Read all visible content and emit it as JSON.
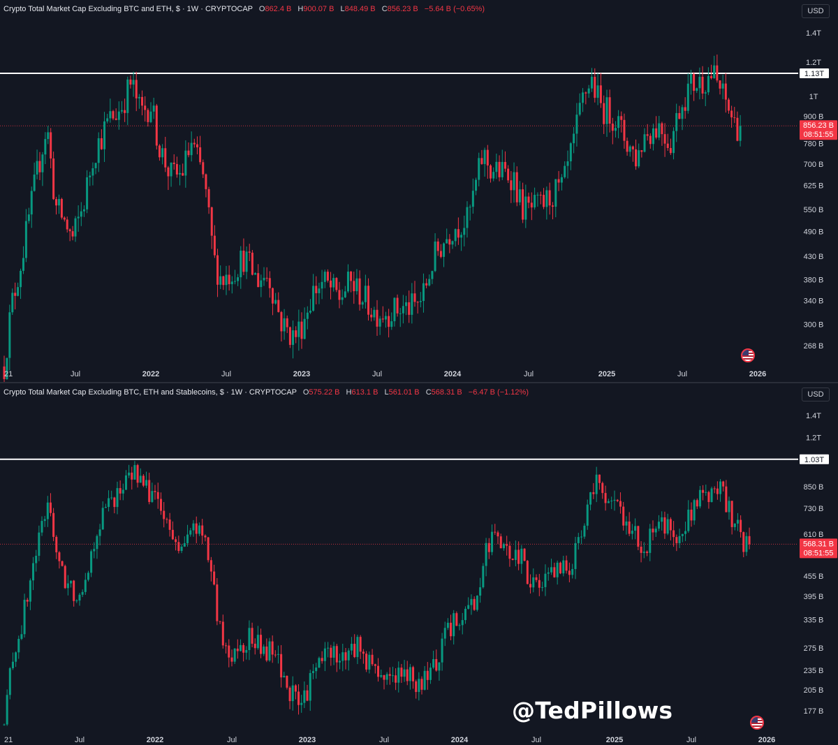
{
  "watermark": "@TedPillows",
  "colors": {
    "up": "#089981",
    "down": "#f23645",
    "bg": "#131722",
    "text": "#d1d4dc",
    "hline": "#ffffff"
  },
  "chart_data": [
    {
      "type": "candlestick",
      "title": "Crypto Total Market Cap Excluding BTC and ETH, $ · 1W · CRYPTOCAP",
      "ohlc": {
        "o_label": "O",
        "o": "862.4 B",
        "h_label": "H",
        "h": "900.07 B",
        "l_label": "L",
        "l": "848.49 B",
        "c_label": "C",
        "c": "856.23 B",
        "change": "−5.64 B (−0.65%)"
      },
      "currency": "USD",
      "scale": "log",
      "y_ticks": [
        "1.4T",
        "1.2T",
        "1T",
        "900 B",
        "780 B",
        "700 B",
        "625 B",
        "550 B",
        "490 B",
        "430 B",
        "380 B",
        "340 B",
        "300 B",
        "268 B"
      ],
      "x_ticks": [
        "21",
        "Jul",
        "2022",
        "Jul",
        "2023",
        "Jul",
        "2024",
        "Jul",
        "2025",
        "Jul",
        "2026"
      ],
      "horizontal_line": {
        "label": "1.13T",
        "value": 1130
      },
      "last_price": {
        "label": "856.23 B",
        "countdown": "08:51:55",
        "value": 856.23
      },
      "anchors": [
        [
          2021.0,
          240
        ],
        [
          2021.05,
          330
        ],
        [
          2021.12,
          420
        ],
        [
          2021.22,
          640
        ],
        [
          2021.3,
          860
        ],
        [
          2021.36,
          560
        ],
        [
          2021.42,
          520
        ],
        [
          2021.48,
          470
        ],
        [
          2021.55,
          560
        ],
        [
          2021.62,
          740
        ],
        [
          2021.72,
          880
        ],
        [
          2021.8,
          940
        ],
        [
          2021.87,
          1080
        ],
        [
          2021.93,
          920
        ],
        [
          2022.0,
          960
        ],
        [
          2022.06,
          760
        ],
        [
          2022.13,
          660
        ],
        [
          2022.2,
          660
        ],
        [
          2022.27,
          780
        ],
        [
          2022.35,
          650
        ],
        [
          2022.42,
          420
        ],
        [
          2022.47,
          380
        ],
        [
          2022.55,
          400
        ],
        [
          2022.62,
          430
        ],
        [
          2022.7,
          380
        ],
        [
          2022.78,
          390
        ],
        [
          2022.87,
          300
        ],
        [
          2022.95,
          280
        ],
        [
          2023.0,
          300
        ],
        [
          2023.08,
          360
        ],
        [
          2023.15,
          375
        ],
        [
          2023.25,
          345
        ],
        [
          2023.32,
          375
        ],
        [
          2023.4,
          350
        ],
        [
          2023.48,
          320
        ],
        [
          2023.56,
          320
        ],
        [
          2023.65,
          325
        ],
        [
          2023.75,
          330
        ],
        [
          2023.8,
          345
        ],
        [
          2023.88,
          430
        ],
        [
          2023.95,
          470
        ],
        [
          2024.0,
          500
        ],
        [
          2024.1,
          520
        ],
        [
          2024.2,
          740
        ],
        [
          2024.25,
          680
        ],
        [
          2024.32,
          670
        ],
        [
          2024.4,
          660
        ],
        [
          2024.45,
          560
        ],
        [
          2024.5,
          550
        ],
        [
          2024.58,
          560
        ],
        [
          2024.66,
          600
        ],
        [
          2024.72,
          620
        ],
        [
          2024.78,
          760
        ],
        [
          2024.85,
          1000
        ],
        [
          2024.9,
          1100
        ],
        [
          2024.96,
          950
        ],
        [
          2025.05,
          900
        ],
        [
          2025.12,
          800
        ],
        [
          2025.2,
          720
        ],
        [
          2025.25,
          820
        ],
        [
          2025.35,
          860
        ],
        [
          2025.42,
          780
        ],
        [
          2025.48,
          940
        ],
        [
          2025.55,
          1060
        ],
        [
          2025.62,
          1080
        ],
        [
          2025.7,
          1130
        ],
        [
          2025.75,
          1040
        ],
        [
          2025.8,
          950
        ],
        [
          2025.85,
          860
        ],
        [
          2025.89,
          856
        ]
      ]
    },
    {
      "type": "candlestick",
      "title": "Crypto Total Market Cap Excluding BTC, ETH and Stablecoins, $ · 1W · CRYPTOCAP",
      "ohlc": {
        "o_label": "O",
        "o": "575.22 B",
        "h_label": "H",
        "h": "613.1 B",
        "l_label": "L",
        "l": "561.01 B",
        "c_label": "C",
        "c": "568.31 B",
        "change": "−6.47 B (−1.12%)"
      },
      "currency": "USD",
      "scale": "log",
      "y_ticks": [
        "1.4T",
        "1.2T",
        "850 B",
        "730 B",
        "610 B",
        "455 B",
        "395 B",
        "335 B",
        "275 B",
        "235 B",
        "205 B",
        "177 B"
      ],
      "x_ticks": [
        "21",
        "Jul",
        "2022",
        "Jul",
        "2023",
        "Jul",
        "2024",
        "Jul",
        "2025",
        "Jul",
        "2026"
      ],
      "horizontal_line": {
        "label": "1.03T",
        "value": 1030
      },
      "last_price": {
        "label": "568.31 B",
        "countdown": "08:51:55",
        "value": 568.31
      },
      "anchors": [
        [
          2021.0,
          160
        ],
        [
          2021.05,
          250
        ],
        [
          2021.12,
          330
        ],
        [
          2021.22,
          560
        ],
        [
          2021.3,
          780
        ],
        [
          2021.36,
          480
        ],
        [
          2021.42,
          430
        ],
        [
          2021.48,
          400
        ],
        [
          2021.55,
          470
        ],
        [
          2021.62,
          650
        ],
        [
          2021.72,
          790
        ],
        [
          2021.8,
          860
        ],
        [
          2021.87,
          970
        ],
        [
          2021.93,
          830
        ],
        [
          2022.0,
          820
        ],
        [
          2022.06,
          660
        ],
        [
          2022.13,
          570
        ],
        [
          2022.2,
          570
        ],
        [
          2022.27,
          650
        ],
        [
          2022.35,
          520
        ],
        [
          2022.42,
          310
        ],
        [
          2022.47,
          260
        ],
        [
          2022.55,
          280
        ],
        [
          2022.62,
          300
        ],
        [
          2022.7,
          270
        ],
        [
          2022.78,
          265
        ],
        [
          2022.87,
          210
        ],
        [
          2022.95,
          180
        ],
        [
          2023.0,
          205
        ],
        [
          2023.08,
          250
        ],
        [
          2023.15,
          270
        ],
        [
          2023.25,
          255
        ],
        [
          2023.32,
          285
        ],
        [
          2023.4,
          250
        ],
        [
          2023.48,
          225
        ],
        [
          2023.56,
          230
        ],
        [
          2023.65,
          225
        ],
        [
          2023.75,
          215
        ],
        [
          2023.8,
          220
        ],
        [
          2023.88,
          280
        ],
        [
          2023.95,
          320
        ],
        [
          2024.0,
          350
        ],
        [
          2024.1,
          380
        ],
        [
          2024.2,
          600
        ],
        [
          2024.25,
          560
        ],
        [
          2024.32,
          530
        ],
        [
          2024.4,
          520
        ],
        [
          2024.45,
          450
        ],
        [
          2024.5,
          430
        ],
        [
          2024.58,
          440
        ],
        [
          2024.66,
          490
        ],
        [
          2024.72,
          480
        ],
        [
          2024.78,
          600
        ],
        [
          2024.85,
          880
        ],
        [
          2024.9,
          850
        ],
        [
          2024.96,
          760
        ],
        [
          2025.05,
          700
        ],
        [
          2025.12,
          610
        ],
        [
          2025.2,
          560
        ],
        [
          2025.25,
          620
        ],
        [
          2025.35,
          650
        ],
        [
          2025.42,
          590
        ],
        [
          2025.48,
          700
        ],
        [
          2025.55,
          780
        ],
        [
          2025.62,
          800
        ],
        [
          2025.7,
          820
        ],
        [
          2025.75,
          720
        ],
        [
          2025.8,
          640
        ],
        [
          2025.85,
          580
        ],
        [
          2025.89,
          568
        ]
      ]
    }
  ]
}
